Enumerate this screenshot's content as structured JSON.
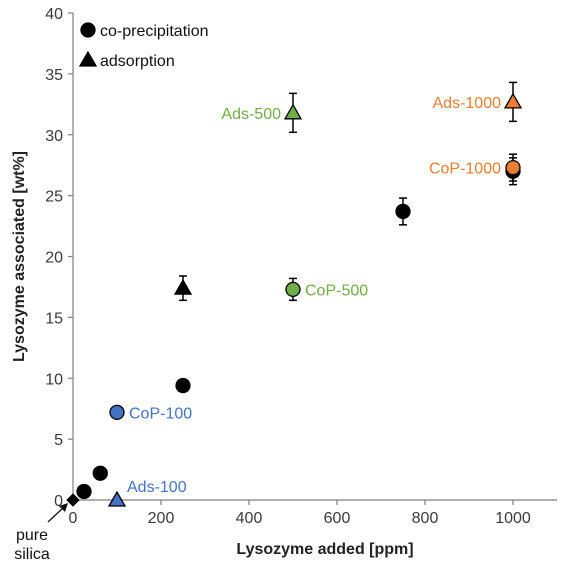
{
  "chart_data": {
    "type": "scatter",
    "title": "",
    "xlabel": "Lysozyme added [ppm]",
    "ylabel": "Lysozyme associated [wt%]",
    "xlim": [
      0,
      1100
    ],
    "ylim": [
      0,
      40
    ],
    "xticks": [
      0,
      200,
      400,
      600,
      800,
      1000
    ],
    "yticks": [
      0,
      5,
      10,
      15,
      20,
      25,
      30,
      35,
      40
    ],
    "grid": false,
    "legend_position": "top-left",
    "legend": [
      {
        "name": "co-precipitation",
        "marker": "circle"
      },
      {
        "name": "adsorption",
        "marker": "triangle"
      }
    ],
    "series": [
      {
        "name": "co-precipitation",
        "marker": "circle",
        "points": [
          {
            "x": 25,
            "y": 0.7,
            "err": 0,
            "color": "#000000"
          },
          {
            "x": 62,
            "y": 2.2,
            "err": 0,
            "color": "#000000"
          },
          {
            "x": 100,
            "y": 7.2,
            "err": 0,
            "color": "#4472c4"
          },
          {
            "x": 250,
            "y": 9.4,
            "err": 0,
            "color": "#000000"
          },
          {
            "x": 500,
            "y": 17.3,
            "err": 0.9,
            "color": "#70ad47"
          },
          {
            "x": 750,
            "y": 23.7,
            "err": 1.1,
            "color": "#000000"
          },
          {
            "x": 1000,
            "y": 27.0,
            "err": 1.1,
            "color": "#000000"
          },
          {
            "x": 1000,
            "y": 27.3,
            "err": 1.1,
            "color": "#ed7d31"
          }
        ]
      },
      {
        "name": "adsorption",
        "marker": "triangle",
        "points": [
          {
            "x": 100,
            "y": 0.0,
            "err": 0,
            "color": "#4472c4"
          },
          {
            "x": 250,
            "y": 17.4,
            "err": 1.0,
            "color": "#000000"
          },
          {
            "x": 500,
            "y": 31.8,
            "err": 1.6,
            "color": "#70ad47"
          },
          {
            "x": 1000,
            "y": 32.7,
            "err": 1.6,
            "color": "#ed7d31"
          }
        ]
      },
      {
        "name": "pure silica",
        "marker": "diamond",
        "points": [
          {
            "x": 0,
            "y": 0.0,
            "err": 0,
            "color": "#000000"
          }
        ]
      }
    ],
    "annotations": [
      {
        "text": "Ads-500",
        "x": 500,
        "y": 31.8,
        "color": "#70ad47",
        "side": "left"
      },
      {
        "text": "Ads-1000",
        "x": 1000,
        "y": 32.7,
        "color": "#ed7d31",
        "side": "left"
      },
      {
        "text": "CoP-1000",
        "x": 1000,
        "y": 27.3,
        "color": "#ed7d31",
        "side": "left"
      },
      {
        "text": "CoP-500",
        "x": 500,
        "y": 17.3,
        "color": "#70ad47",
        "side": "right"
      },
      {
        "text": "CoP-100",
        "x": 100,
        "y": 7.2,
        "color": "#4472c4",
        "side": "right"
      },
      {
        "text": "Ads-100",
        "x": 100,
        "y": 0.0,
        "color": "#4472c4",
        "side": "right-up"
      }
    ],
    "pure_silica_label": [
      "pure",
      "silica"
    ]
  }
}
